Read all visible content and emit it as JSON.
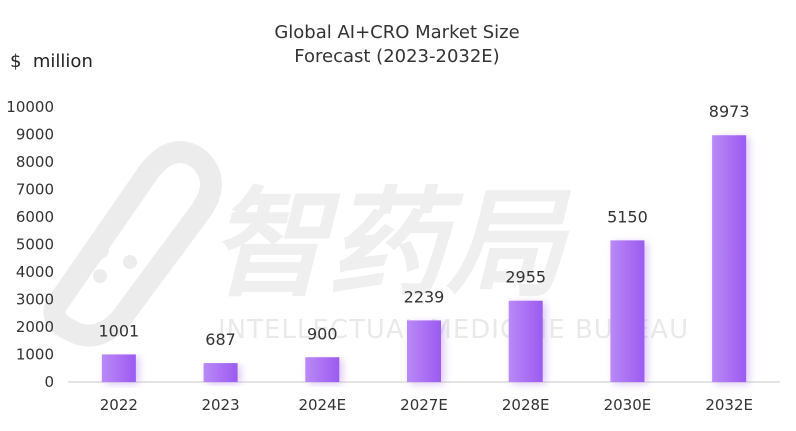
{
  "chart_data": {
    "type": "bar",
    "title_lines": [
      "Global AI+CRO Market Size",
      "Forecast (2023-2032E)"
    ],
    "unit_label": "$  million",
    "categories": [
      "2022",
      "2023",
      "2024E",
      "2027E",
      "2028E",
      "2030E",
      "2032E"
    ],
    "values": [
      1001,
      687,
      900,
      2239,
      2955,
      5150,
      8973
    ],
    "data_labels": [
      "1001",
      "687",
      "900",
      "2239",
      "2955",
      "5150",
      "8973"
    ],
    "ylim": [
      0,
      10000
    ],
    "yticks": [
      0,
      1000,
      2000,
      3000,
      4000,
      5000,
      6000,
      7000,
      8000,
      9000,
      10000
    ],
    "ytick_labels": [
      "0",
      "1000",
      "2000",
      "3000",
      "4000",
      "5000",
      "6000",
      "7000",
      "8000",
      "9000",
      "10000"
    ],
    "grid": false,
    "bar_color": "#b57cf5",
    "bar_color_dark": "#9e5ef0"
  },
  "watermark": {
    "logo_text": "智药局",
    "subtitle": "INTELLECTUAL MEDICINE BUREAU"
  }
}
